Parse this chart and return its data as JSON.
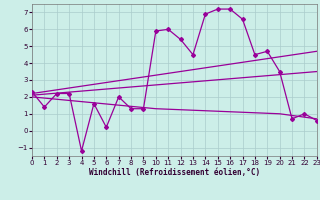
{
  "background_color": "#cceee8",
  "grid_color": "#aacccc",
  "line_color": "#990099",
  "xlabel": "Windchill (Refroidissement éolien,°C)",
  "xlim": [
    0,
    23
  ],
  "ylim": [
    -1.5,
    7.5
  ],
  "yticks": [
    -1,
    0,
    1,
    2,
    3,
    4,
    5,
    6,
    7
  ],
  "xticks": [
    0,
    1,
    2,
    3,
    4,
    5,
    6,
    7,
    8,
    9,
    10,
    11,
    12,
    13,
    14,
    15,
    16,
    17,
    18,
    19,
    20,
    21,
    22,
    23
  ],
  "series1_x": [
    0,
    1,
    2,
    3,
    4,
    5,
    6,
    7,
    8,
    9,
    10,
    11,
    12,
    13,
    14,
    15,
    16,
    17,
    18,
    19,
    20,
    21,
    22,
    23
  ],
  "series1_y": [
    2.3,
    1.4,
    2.2,
    2.2,
    -1.2,
    1.6,
    0.2,
    2.0,
    1.3,
    1.3,
    5.9,
    6.0,
    5.4,
    4.5,
    6.9,
    7.2,
    7.2,
    6.6,
    4.5,
    4.7,
    3.5,
    0.7,
    1.0,
    0.6
  ],
  "series2_x": [
    0,
    23
  ],
  "series2_y": [
    2.2,
    4.7
  ],
  "series3_x": [
    0,
    23
  ],
  "series3_y": [
    2.1,
    3.5
  ],
  "series4_x": [
    0,
    10,
    20,
    23
  ],
  "series4_y": [
    2.0,
    1.3,
    1.0,
    0.7
  ]
}
